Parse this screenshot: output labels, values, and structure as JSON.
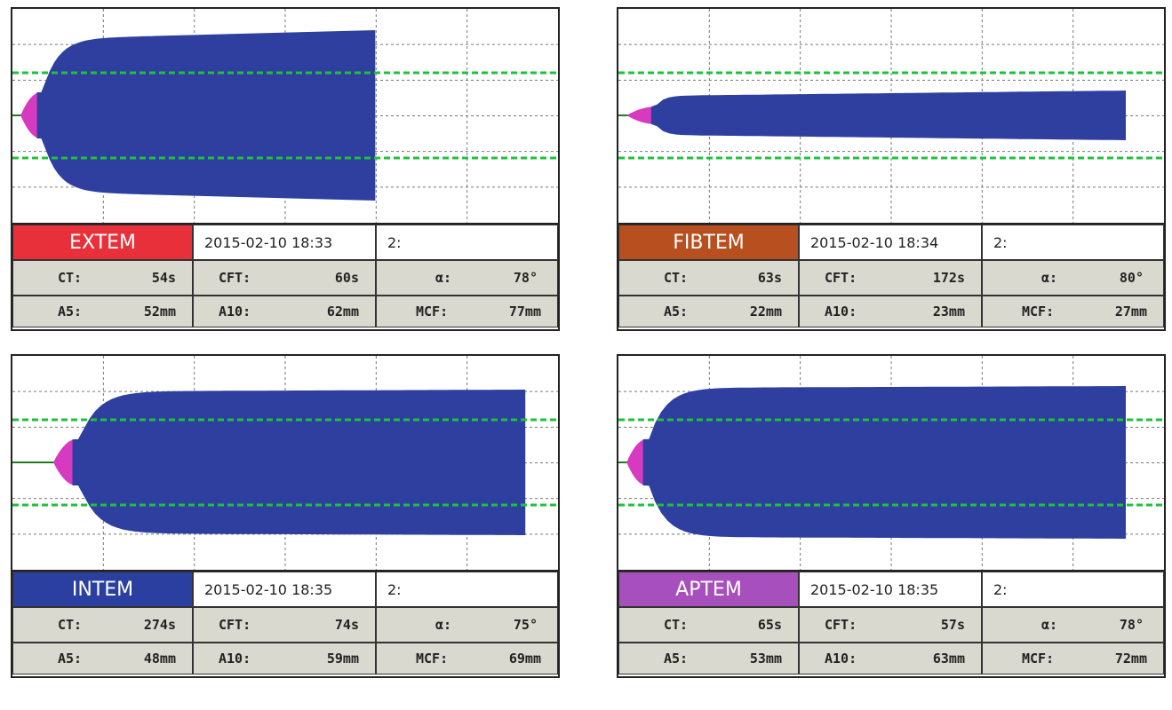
{
  "chart_data": [
    {
      "type": "area",
      "assay": "EXTEM",
      "label_color": "#e8303a",
      "date": "2015-02-10  18:33",
      "channel": "2:",
      "params": {
        "CT": "54s",
        "CFT": "60s",
        "alpha": "78°",
        "A5": "52mm",
        "A10": "62mm",
        "MCF": "77mm"
      },
      "curve": {
        "start": 0.015,
        "trace_start": 0.045,
        "end": 0.665,
        "amp": 96,
        "k": 0.06,
        "drift": 10
      }
    },
    {
      "type": "area",
      "assay": "FIBTEM",
      "label_color": "#b84f1f",
      "date": "2015-02-10  18:34",
      "channel": "2:",
      "params": {
        "CT": "63s",
        "CFT": "172s",
        "alpha": "80°",
        "A5": "22mm",
        "A10": "23mm",
        "MCF": "27mm"
      },
      "curve": {
        "start": 0.015,
        "trace_start": 0.06,
        "end": 0.93,
        "amp": 28,
        "k": 0.12,
        "drift": 6
      }
    },
    {
      "type": "area",
      "assay": "INTEM",
      "label_color": "#2b3fa0",
      "date": "2015-02-10  18:35",
      "channel": "2:",
      "params": {
        "CT": "274s",
        "CFT": "74s",
        "alpha": "75°",
        "A5": "48mm",
        "A10": "59mm",
        "MCF": "69mm"
      },
      "curve": {
        "start": 0.075,
        "trace_start": 0.11,
        "end": 0.94,
        "amp": 82,
        "k": 0.05,
        "drift": 2
      }
    },
    {
      "type": "area",
      "assay": "APTEM",
      "label_color": "#a64fbd",
      "date": "2015-02-10  18:35",
      "channel": "2:",
      "params": {
        "CT": "65s",
        "CFT": "57s",
        "alpha": "78°",
        "A5": "53mm",
        "A10": "63mm",
        "MCF": "72mm"
      },
      "curve": {
        "start": 0.015,
        "trace_start": 0.045,
        "end": 0.93,
        "amp": 86,
        "k": 0.055,
        "drift": 2
      }
    }
  ],
  "labels": {
    "ct": "CT:",
    "cft": "CFT:",
    "alpha": "α:",
    "a5": "A5:",
    "a10": "A10:",
    "mcf": "MCF:"
  },
  "colors": {
    "area": "#2e3f9f",
    "onset": "#d63ac0",
    "ref_lines": "#1ec23a",
    "grid": "#777777"
  }
}
